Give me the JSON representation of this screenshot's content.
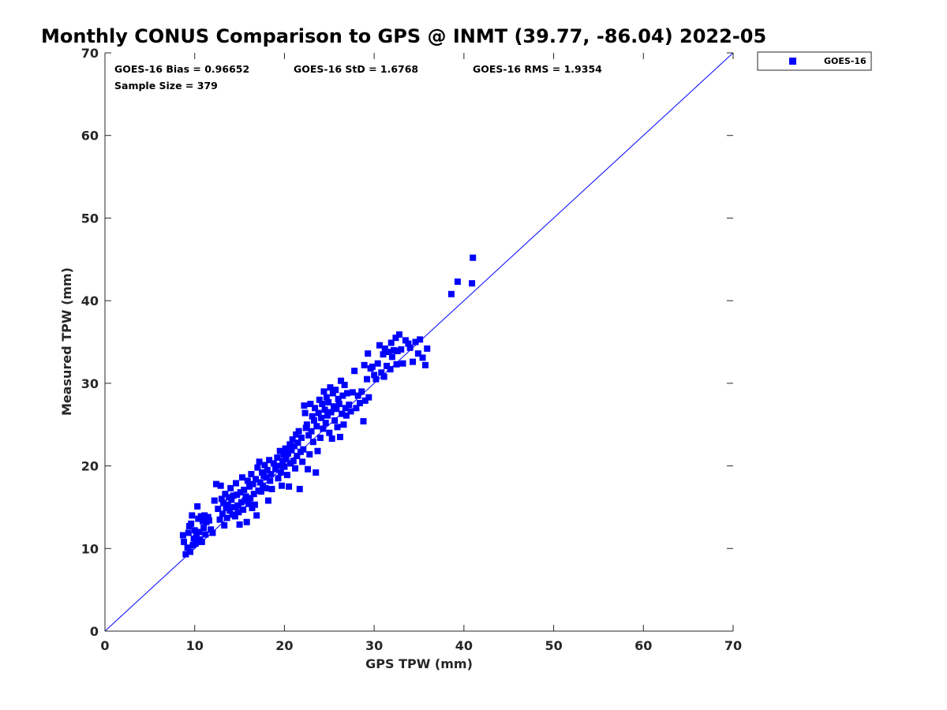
{
  "chart_data": {
    "type": "scatter",
    "title": "Monthly CONUS Comparison to GPS @ INMT (39.77, -86.04) 2022-05",
    "xlabel": "GPS TPW (mm)",
    "ylabel": "Measured TPW (mm)",
    "xlim": [
      0,
      70
    ],
    "ylim": [
      0,
      70
    ],
    "xticks": [
      "0",
      "10",
      "20",
      "30",
      "40",
      "50",
      "60",
      "70"
    ],
    "yticks": [
      "0",
      "10",
      "20",
      "30",
      "40",
      "50",
      "60",
      "70"
    ],
    "grid": false,
    "legend_position": "outside-top-right",
    "reference_line": {
      "x": [
        0,
        70
      ],
      "y": [
        0,
        70
      ],
      "color": "#0000ff"
    },
    "annotations": {
      "bias": "GOES-16 Bias = 0.96652",
      "std": "GOES-16 StD = 1.6768",
      "rms": "GOES-16 RMS = 1.9354",
      "sample_size": "Sample Size = 379"
    },
    "series": [
      {
        "name": "GOES-16",
        "color": "#0000ff",
        "marker": "square",
        "points": [
          [
            8.7,
            11.6
          ],
          [
            8.8,
            10.8
          ],
          [
            9.0,
            9.3
          ],
          [
            9.2,
            10.1
          ],
          [
            9.3,
            11.9
          ],
          [
            9.4,
            12.7
          ],
          [
            9.5,
            9.6
          ],
          [
            9.6,
            13.0
          ],
          [
            9.7,
            14.0
          ],
          [
            9.8,
            10.4
          ],
          [
            9.9,
            11.2
          ],
          [
            10.0,
            12.2
          ],
          [
            10.1,
            10.6
          ],
          [
            10.2,
            11.5
          ],
          [
            10.3,
            15.1
          ],
          [
            10.4,
            13.6
          ],
          [
            10.5,
            12.0
          ],
          [
            10.6,
            11.1
          ],
          [
            10.7,
            13.9
          ],
          [
            10.8,
            10.8
          ],
          [
            10.9,
            13.3
          ],
          [
            11.0,
            12.5
          ],
          [
            11.1,
            14.0
          ],
          [
            11.2,
            11.7
          ],
          [
            11.3,
            13.2
          ],
          [
            11.5,
            13.8
          ],
          [
            11.6,
            13.4
          ],
          [
            11.8,
            12.3
          ],
          [
            12.0,
            11.9
          ],
          [
            12.2,
            15.8
          ],
          [
            12.4,
            17.8
          ],
          [
            12.6,
            14.8
          ],
          [
            12.8,
            13.5
          ],
          [
            12.9,
            17.6
          ],
          [
            13.0,
            16.0
          ],
          [
            13.1,
            14.2
          ],
          [
            13.2,
            15.5
          ],
          [
            13.3,
            12.8
          ],
          [
            13.4,
            16.6
          ],
          [
            13.5,
            14.9
          ],
          [
            13.6,
            13.7
          ],
          [
            13.7,
            15.3
          ],
          [
            13.8,
            16.2
          ],
          [
            13.9,
            14.6
          ],
          [
            14.0,
            17.3
          ],
          [
            14.1,
            15.9
          ],
          [
            14.2,
            14.1
          ],
          [
            14.3,
            16.4
          ],
          [
            14.4,
            15.0
          ],
          [
            14.5,
            13.9
          ],
          [
            14.6,
            17.9
          ],
          [
            14.7,
            16.5
          ],
          [
            14.8,
            15.2
          ],
          [
            14.9,
            14.4
          ],
          [
            15.0,
            12.9
          ],
          [
            15.1,
            16.8
          ],
          [
            15.2,
            15.6
          ],
          [
            15.3,
            18.6
          ],
          [
            15.4,
            14.7
          ],
          [
            15.5,
            17.1
          ],
          [
            15.6,
            15.8
          ],
          [
            15.7,
            16.3
          ],
          [
            15.8,
            13.2
          ],
          [
            15.9,
            18.2
          ],
          [
            16.0,
            15.4
          ],
          [
            16.1,
            17.5
          ],
          [
            16.2,
            16.1
          ],
          [
            16.3,
            19.0
          ],
          [
            16.4,
            14.9
          ],
          [
            16.5,
            17.8
          ],
          [
            16.6,
            16.6
          ],
          [
            16.7,
            15.3
          ],
          [
            16.8,
            18.4
          ],
          [
            16.9,
            14.0
          ],
          [
            17.0,
            19.8
          ],
          [
            17.1,
            17.0
          ],
          [
            17.2,
            20.5
          ],
          [
            17.3,
            18.0
          ],
          [
            17.4,
            16.9
          ],
          [
            17.5,
            19.2
          ],
          [
            17.6,
            17.6
          ],
          [
            17.7,
            18.8
          ],
          [
            17.8,
            20.1
          ],
          [
            17.9,
            17.3
          ],
          [
            18.0,
            18.6
          ],
          [
            18.1,
            19.5
          ],
          [
            18.2,
            15.8
          ],
          [
            18.3,
            20.7
          ],
          [
            18.4,
            18.2
          ],
          [
            18.5,
            19.0
          ],
          [
            18.6,
            17.2
          ],
          [
            18.8,
            20.3
          ],
          [
            19.0,
            19.6
          ],
          [
            19.2,
            21.0
          ],
          [
            19.3,
            18.5
          ],
          [
            19.4,
            20.0
          ],
          [
            19.5,
            21.8
          ],
          [
            19.6,
            19.2
          ],
          [
            19.7,
            17.6
          ],
          [
            19.8,
            20.6
          ],
          [
            19.9,
            21.4
          ],
          [
            20.0,
            19.9
          ],
          [
            20.1,
            22.1
          ],
          [
            20.2,
            20.8
          ],
          [
            20.3,
            18.9
          ],
          [
            20.4,
            21.5
          ],
          [
            20.5,
            17.5
          ],
          [
            20.6,
            22.6
          ],
          [
            20.7,
            20.3
          ],
          [
            20.8,
            21.9
          ],
          [
            20.9,
            23.2
          ],
          [
            21.0,
            20.6
          ],
          [
            21.1,
            22.4
          ],
          [
            21.2,
            19.7
          ],
          [
            21.3,
            23.8
          ],
          [
            21.4,
            21.2
          ],
          [
            21.5,
            22.8
          ],
          [
            21.6,
            24.2
          ],
          [
            21.7,
            17.2
          ],
          [
            21.8,
            21.7
          ],
          [
            21.9,
            23.4
          ],
          [
            22.0,
            20.5
          ],
          [
            22.1,
            22.0
          ],
          [
            22.2,
            27.3
          ],
          [
            22.3,
            26.4
          ],
          [
            22.4,
            24.6
          ],
          [
            22.5,
            25.0
          ],
          [
            22.6,
            19.6
          ],
          [
            22.7,
            23.7
          ],
          [
            22.8,
            21.4
          ],
          [
            22.9,
            27.5
          ],
          [
            23.0,
            24.2
          ],
          [
            23.1,
            26.0
          ],
          [
            23.2,
            22.9
          ],
          [
            23.3,
            25.5
          ],
          [
            23.4,
            27.0
          ],
          [
            23.5,
            19.2
          ],
          [
            23.6,
            24.8
          ],
          [
            23.7,
            21.8
          ],
          [
            23.8,
            26.4
          ],
          [
            23.9,
            28.0
          ],
          [
            24.0,
            23.4
          ],
          [
            24.1,
            25.8
          ],
          [
            24.2,
            27.5
          ],
          [
            24.3,
            24.5
          ],
          [
            24.4,
            29.0
          ],
          [
            24.5,
            26.8
          ],
          [
            24.6,
            25.2
          ],
          [
            24.7,
            28.3
          ],
          [
            24.8,
            26.1
          ],
          [
            24.9,
            27.7
          ],
          [
            25.0,
            24.0
          ],
          [
            25.1,
            29.5
          ],
          [
            25.2,
            26.5
          ],
          [
            25.3,
            23.3
          ],
          [
            25.4,
            28.8
          ],
          [
            25.5,
            27.2
          ],
          [
            25.6,
            25.5
          ],
          [
            25.7,
            29.2
          ],
          [
            25.8,
            26.9
          ],
          [
            25.9,
            24.7
          ],
          [
            26.0,
            28.1
          ],
          [
            26.1,
            27.5
          ],
          [
            26.2,
            23.5
          ],
          [
            26.3,
            30.3
          ],
          [
            26.4,
            26.3
          ],
          [
            26.5,
            28.5
          ],
          [
            26.6,
            25.0
          ],
          [
            26.7,
            29.8
          ],
          [
            26.8,
            27.0
          ],
          [
            26.9,
            26.1
          ],
          [
            27.0,
            28.8
          ],
          [
            27.2,
            27.4
          ],
          [
            27.4,
            26.6
          ],
          [
            27.6,
            28.9
          ],
          [
            27.8,
            31.5
          ],
          [
            28.0,
            27.0
          ],
          [
            28.2,
            28.5
          ],
          [
            28.4,
            27.6
          ],
          [
            28.6,
            29.0
          ],
          [
            28.8,
            25.4
          ],
          [
            28.9,
            32.2
          ],
          [
            29.0,
            27.9
          ],
          [
            29.2,
            30.5
          ],
          [
            29.3,
            33.6
          ],
          [
            29.4,
            28.3
          ],
          [
            29.6,
            31.8
          ],
          [
            29.8,
            32.0
          ],
          [
            30.0,
            31.0
          ],
          [
            30.2,
            30.5
          ],
          [
            30.4,
            32.4
          ],
          [
            30.6,
            34.6
          ],
          [
            30.8,
            31.3
          ],
          [
            31.0,
            33.5
          ],
          [
            31.1,
            30.8
          ],
          [
            31.2,
            34.2
          ],
          [
            31.4,
            32.1
          ],
          [
            31.6,
            33.8
          ],
          [
            31.8,
            31.7
          ],
          [
            31.9,
            34.9
          ],
          [
            32.0,
            33.2
          ],
          [
            32.2,
            34.0
          ],
          [
            32.4,
            35.5
          ],
          [
            32.5,
            32.3
          ],
          [
            32.6,
            33.9
          ],
          [
            32.8,
            35.9
          ],
          [
            33.0,
            34.1
          ],
          [
            33.2,
            32.4
          ],
          [
            33.5,
            35.2
          ],
          [
            33.8,
            34.8
          ],
          [
            34.0,
            34.3
          ],
          [
            34.3,
            32.6
          ],
          [
            34.6,
            35.0
          ],
          [
            34.9,
            33.6
          ],
          [
            35.1,
            35.3
          ],
          [
            35.4,
            33.1
          ],
          [
            35.7,
            32.2
          ],
          [
            35.9,
            34.2
          ],
          [
            38.6,
            40.8
          ],
          [
            39.3,
            42.3
          ],
          [
            40.9,
            42.1
          ],
          [
            41.0,
            45.2
          ]
        ]
      }
    ]
  }
}
